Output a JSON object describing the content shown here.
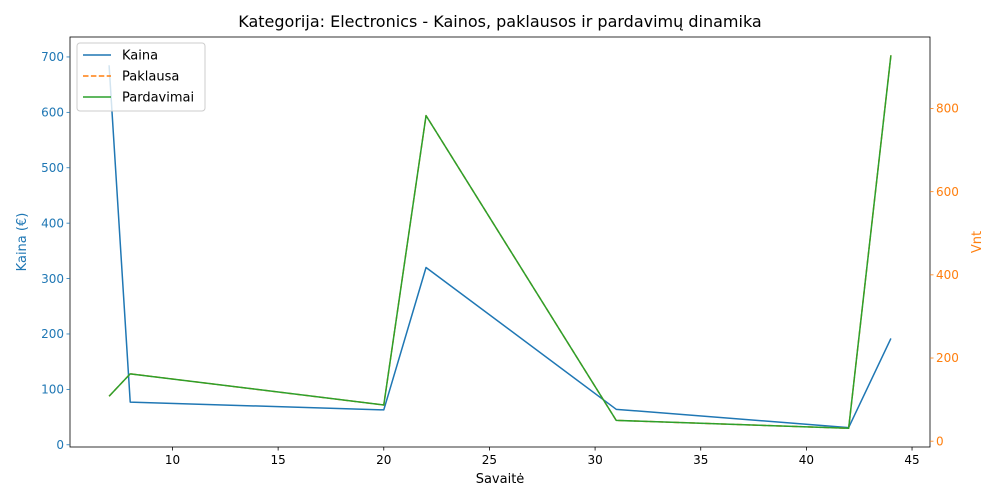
{
  "colors": {
    "price": "#1f77b4",
    "demand": "#ff7f0e",
    "sales": "#2ca02c",
    "axis": "#000000"
  },
  "chart_data": {
    "type": "line",
    "title": "Kategorija: Electronics - Kainos, paklausos ir pardavimų dinamika",
    "xlabel": "Savaitė",
    "ylabel_left": "Kaina (€)",
    "ylabel_right": "Vnt",
    "xlim": [
      5.15,
      45.85
    ],
    "ylim_left": [
      -4,
      736
    ],
    "ylim_right": [
      -14,
      972
    ],
    "x_ticks": [
      10,
      15,
      20,
      25,
      30,
      35,
      40,
      45
    ],
    "y_ticks_left": [
      0,
      100,
      200,
      300,
      400,
      500,
      600,
      700
    ],
    "y_ticks_right": [
      0,
      200,
      400,
      600,
      800
    ],
    "legend_position": "upper left",
    "grid": false,
    "x": [
      7,
      8,
      20,
      22,
      31,
      42,
      44
    ],
    "series": [
      {
        "name": "Kaina",
        "axis": "left",
        "style": "solid",
        "color_key": "price",
        "values": [
          685,
          77,
          63,
          320,
          64,
          31,
          192
        ]
      },
      {
        "name": "Paklausa",
        "axis": "right",
        "style": "dashed",
        "color_key": "demand",
        "values": [
          108,
          162,
          87,
          783,
          50,
          31,
          928
        ]
      },
      {
        "name": "Pardavimai",
        "axis": "right",
        "style": "solid",
        "color_key": "sales",
        "values": [
          108,
          162,
          87,
          783,
          50,
          31,
          928
        ]
      }
    ]
  }
}
